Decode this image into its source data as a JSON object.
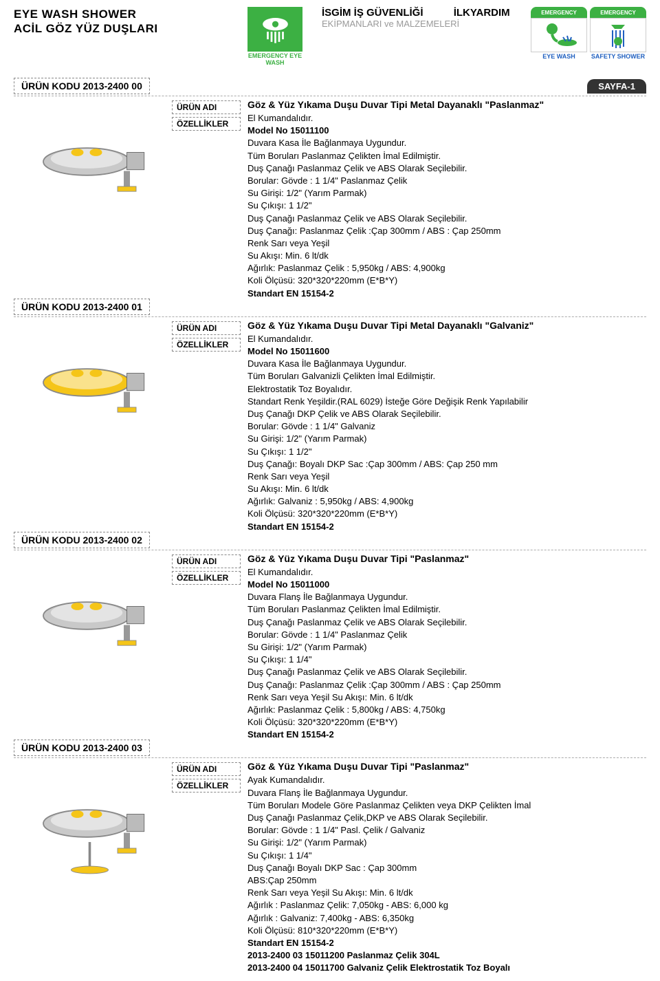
{
  "header": {
    "title_en": "EYE WASH SHOWER",
    "title_tr": "ACİL GÖZ YÜZ DUŞLARI",
    "center_line1a": "İSGİM İŞ GÜVENLİĞİ",
    "center_line1b": "İLKYARDIM",
    "center_line2": "EKİPMANLARI ve MALZEMELERİ",
    "logo_text": "EMERGENCY EYE WASH",
    "badge1_top": "EMERGENCY",
    "badge1_bot": "EYE WASH",
    "badge2_top": "EMERGENCY",
    "badge2_bot": "SAFETY SHOWER",
    "page_label": "SAYFA-1"
  },
  "labels": {
    "urun_adi": "ÜRÜN ADI",
    "ozellikler": "ÖZELLİKLER"
  },
  "colors": {
    "green": "#3cb043",
    "yellow": "#f5c518",
    "steel": "#c9c9c9",
    "blue": "#2060c0",
    "page_badge_bg": "#333333"
  },
  "products": [
    {
      "code": "ÜRÜN KODU 2013-2400 00",
      "name": "Göz & Yüz Yıkama Duşu Duvar Tipi Metal Dayanaklı \"Paslanmaz\"",
      "bowl_color": "#c9c9c9",
      "specs": [
        "El Kumandalıdır.",
        "Model No 15011100",
        "Duvara Kasa İle Bağlanmaya Uygundur.",
        "Tüm Boruları Paslanmaz Çelikten İmal Edilmiştir.",
        "Duş Çanağı Paslanmaz Çelik ve ABS Olarak Seçilebilir.",
        "Borular: Gövde : 1 1/4\" Paslanmaz Çelik",
        "Su Girişi: 1/2\" (Yarım Parmak)",
        "Su Çıkışı: 1 1/2\"",
        "Duş Çanağı Paslanmaz Çelik ve ABS Olarak Seçilebilir.",
        "Duş Çanağı: Paslanmaz Çelik :Çap 300mm / ABS : Çap 250mm",
        "Renk Sarı veya Yeşil",
        "Su Akışı: Min. 6 lt/dk",
        "Ağırlık: Paslanmaz Çelik : 5,950kg / ABS: 4,900kg",
        "Koli Ölçüsü: 320*320*220mm (E*B*Y)"
      ],
      "standard": "Standart EN 15154-2"
    },
    {
      "code": "ÜRÜN KODU 2013-2400 01",
      "name": "Göz & Yüz Yıkama Duşu Duvar Tipi Metal Dayanaklı \"Galvaniz\"",
      "bowl_color": "#f5c518",
      "specs": [
        "El Kumandalıdır.",
        "Model No 15011600",
        "Duvara Kasa İle Bağlanmaya Uygundur.",
        "Tüm Boruları Galvanizli Çelikten İmal Edilmiştir.",
        "Elektrostatik Toz Boyalıdır.",
        "Standart Renk Yeşildir.(RAL 6029) İsteğe Göre Değişik Renk Yapılabilir",
        "Duş Çanağı DKP Çelik ve ABS Olarak Seçilebilir.",
        "Borular: Gövde : 1 1/4\" Galvaniz",
        "Su Girişi: 1/2\" (Yarım Parmak)",
        "Su Çıkışı: 1 1/2\"",
        "Duş Çanağı: Boyalı DKP Sac :Çap 300mm / ABS: Çap 250 mm",
        "Renk Sarı veya Yeşil",
        "Su Akışı: Min. 6 lt/dk",
        "Ağırlık: Galvaniz : 5,950kg / ABS: 4,900kg",
        "Koli Ölçüsü: 320*320*220mm (E*B*Y)"
      ],
      "standard": "Standart EN 15154-2"
    },
    {
      "code": "ÜRÜN KODU 2013-2400 02",
      "name": "Göz & Yüz Yıkama Duşu Duvar Tipi \"Paslanmaz\"",
      "bowl_color": "#c9c9c9",
      "specs": [
        "El Kumandalıdır.",
        "Model No 15011000",
        "Duvara Flanş İle Bağlanmaya Uygundur.",
        "Tüm Boruları Paslanmaz Çelikten İmal Edilmiştir.",
        "Duş Çanağı Paslanmaz Çelik ve ABS Olarak Seçilebilir.",
        "Borular: Gövde : 1 1/4\" Paslanmaz Çelik",
        "Su Girişi: 1/2\" (Yarım Parmak)",
        "Su Çıkışı: 1 1/4\"",
        "Duş Çanağı Paslanmaz Çelik ve ABS Olarak Seçilebilir.",
        "Duş Çanağı: Paslanmaz Çelik :Çap 300mm / ABS : Çap 250mm",
        "Renk Sarı veya Yeşil Su Akışı: Min. 6 lt/dk",
        "Ağırlık: Paslanmaz Çelik : 5,800kg / ABS: 4,750kg",
        "Koli Ölçüsü: 320*320*220mm (E*B*Y)"
      ],
      "standard": "Standart EN 15154-2"
    },
    {
      "code": "ÜRÜN KODU 2013-2400 03",
      "name": "Göz & Yüz Yıkama Duşu Duvar Tipi \"Paslanmaz\"",
      "bowl_color": "#c9c9c9",
      "foot_pedal": true,
      "specs": [
        "Ayak Kumandalıdır.",
        "Duvara Flanş İle Bağlanmaya Uygundur.",
        "Tüm Boruları Modele Göre Paslanmaz Çelikten veya DKP Çelikten İmal",
        "Duş Çanağı Paslanmaz Çelik,DKP ve ABS Olarak Seçilebilir.",
        "Borular: Gövde : 1 1/4\" Pasl. Çelik / Galvaniz",
        "Su Girişi: 1/2\" (Yarım Parmak)",
        "Su Çıkışı: 1 1/4\"",
        "Duş Çanağı Boyalı DKP Sac : Çap 300mm",
        "ABS:Çap 250mm",
        "Renk Sarı veya Yeşil  Su Akışı: Min. 6 lt/dk",
        "Ağırlık : Paslanmaz Çelik: 7,050kg - ABS: 6,000 kg",
        "Ağırlık : Galvaniz: 7,400kg - ABS: 6,350kg",
        "Koli Ölçüsü: 810*320*220mm (E*B*Y)"
      ],
      "standard": "Standart EN 15154-2",
      "variants": [
        "2013-2400 03 15011200 Paslanmaz Çelik 304L",
        "2013-2400 04 15011700 Galvaniz Çelik Elektrostatik Toz Boyalı"
      ]
    }
  ]
}
